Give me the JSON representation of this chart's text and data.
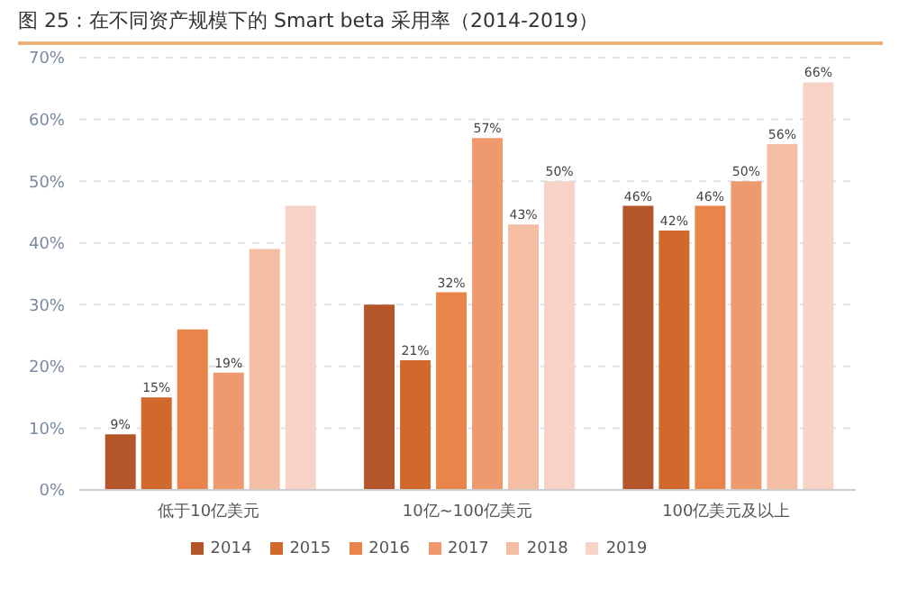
{
  "chart_data": {
    "type": "bar",
    "title": "图 25：在不同资产规模下的 Smart beta 采用率（2014-2019）",
    "categories": [
      "低于10亿美元",
      "10亿~100亿美元",
      "100亿美元及以上"
    ],
    "series": [
      {
        "name": "2014",
        "color": "#b4562a",
        "values": [
          9,
          30,
          46
        ],
        "value_labels": [
          "9%",
          null,
          "46%"
        ]
      },
      {
        "name": "2015",
        "color": "#d2692c",
        "values": [
          15,
          21,
          42
        ],
        "value_labels": [
          "15%",
          "21%",
          "42%"
        ]
      },
      {
        "name": "2016",
        "color": "#e9854a",
        "values": [
          26,
          32,
          46
        ],
        "value_labels": [
          null,
          "32%",
          "46%"
        ]
      },
      {
        "name": "2017",
        "color": "#ef9a6e",
        "values": [
          19,
          57,
          50
        ],
        "value_labels": [
          "19%",
          "57%",
          "50%"
        ]
      },
      {
        "name": "2018",
        "color": "#f3bea4",
        "values": [
          39,
          43,
          56
        ],
        "value_labels": [
          null,
          "43%",
          "56%"
        ]
      },
      {
        "name": "2019",
        "color": "#f6d3c6",
        "values": [
          46,
          50,
          66
        ],
        "value_labels": [
          null,
          "50%",
          "66%"
        ]
      }
    ],
    "ylim": [
      0,
      70
    ],
    "yticks": [
      {
        "value": 0,
        "label": "0%"
      },
      {
        "value": 10,
        "label": "10%"
      },
      {
        "value": 20,
        "label": "20%"
      },
      {
        "value": 30,
        "label": "30%"
      },
      {
        "value": 40,
        "label": "40%"
      },
      {
        "value": 50,
        "label": "50%"
      },
      {
        "value": 60,
        "label": "60%"
      },
      {
        "value": 70,
        "label": "70%"
      }
    ],
    "grid": "y",
    "legend": "bottom"
  }
}
